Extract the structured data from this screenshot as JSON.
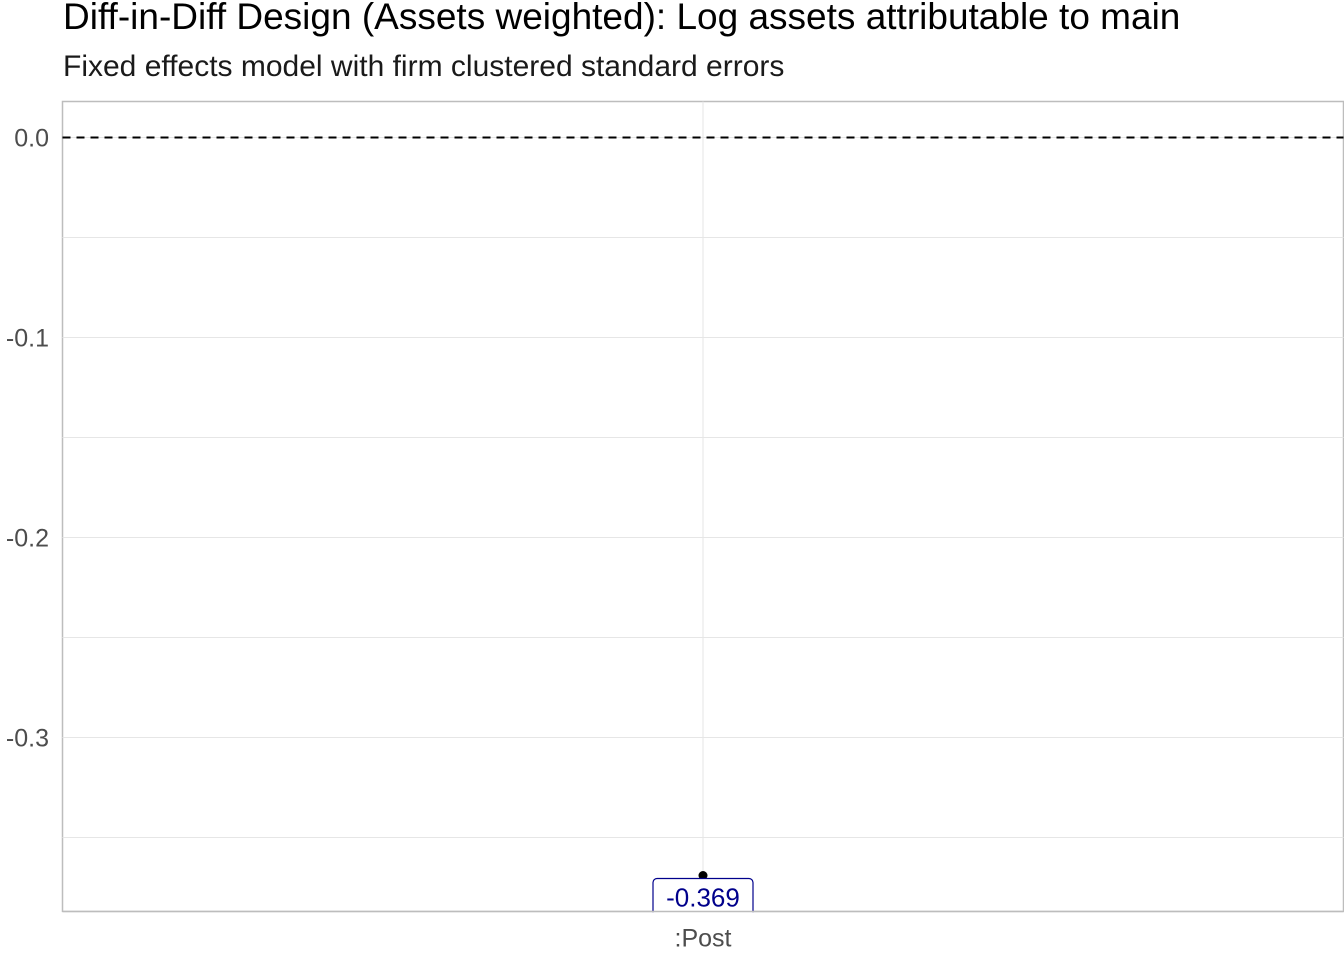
{
  "chart": {
    "title": "Diff-in-Diff Design (Assets weighted): Log assets attributable to main",
    "subtitle": "Fixed effects model with firm clustered standard errors"
  },
  "chart_data": {
    "type": "scatter",
    "title": "Diff-in-Diff Design (Assets weighted): Log assets attributable to main",
    "subtitle": "Fixed effects model with firm clustered standard errors",
    "xlabel": "",
    "ylabel": "",
    "categories": [
      ":Post"
    ],
    "series": [
      {
        "values": [
          -0.369
        ],
        "labels": [
          "-0.369"
        ],
        "color": "#000000",
        "label_color": "#00008b"
      }
    ],
    "reference_line": {
      "y": 0,
      "style": "dashed",
      "color": "#000000"
    },
    "ylim": [
      -0.387,
      0.018
    ],
    "y_ticks": [
      0,
      -0.1,
      -0.2,
      -0.3
    ],
    "y_tick_labels": [
      "0.0",
      "-0.1",
      "-0.2",
      "-0.3"
    ],
    "grid": true,
    "legend": "none"
  }
}
